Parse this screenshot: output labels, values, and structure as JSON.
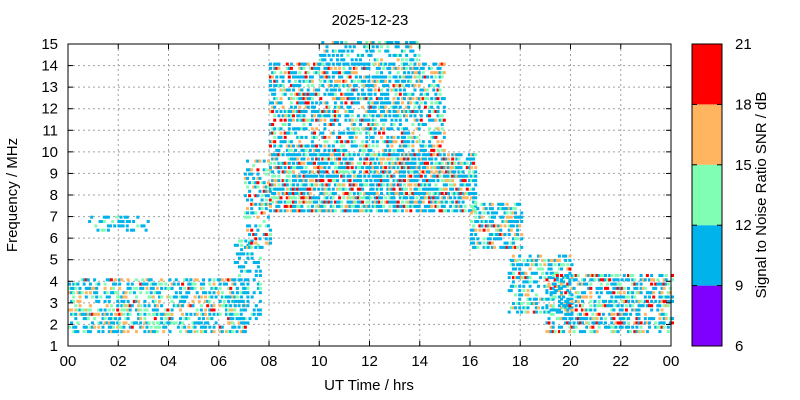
{
  "chart_data": {
    "type": "heatmap",
    "title": "2025-12-23",
    "xlabel": "UT Time / hrs",
    "ylabel": "Frequency / MHz",
    "xlim": [
      0,
      24
    ],
    "ylim": [
      1,
      15
    ],
    "x_ticks": [
      "00",
      "02",
      "04",
      "06",
      "08",
      "10",
      "12",
      "14",
      "16",
      "18",
      "20",
      "22",
      "00"
    ],
    "y_ticks": [
      "1",
      "2",
      "3",
      "4",
      "5",
      "6",
      "7",
      "8",
      "9",
      "10",
      "11",
      "12",
      "13",
      "14",
      "15"
    ],
    "grid": true,
    "colorbar": {
      "label": "Signal to Noise Ratio SNR / dB",
      "ticks": [
        "6",
        "9",
        "12",
        "15",
        "18",
        "21"
      ],
      "bins": [
        {
          "from": 6,
          "to": 9,
          "color": "#8000ff"
        },
        {
          "from": 9,
          "to": 12,
          "color": "#00b4eb"
        },
        {
          "from": 12,
          "to": 15,
          "color": "#80ffb4"
        },
        {
          "from": 15,
          "to": 18,
          "color": "#ffb460"
        },
        {
          "from": 18,
          "to": 21,
          "color": "#ff0000"
        }
      ]
    },
    "observations": [
      {
        "t0": 0.0,
        "t1": 7.0,
        "f0": 1.6,
        "f1": 4.1,
        "density": 0.5,
        "snr": [
          10,
          19
        ]
      },
      {
        "t0": 0.8,
        "t1": 3.2,
        "f0": 6.3,
        "f1": 7.0,
        "density": 0.35,
        "snr": [
          9,
          13
        ]
      },
      {
        "t0": 6.6,
        "t1": 7.6,
        "f0": 2.0,
        "f1": 6.0,
        "density": 0.35,
        "snr": [
          9,
          14
        ]
      },
      {
        "t0": 7.0,
        "t1": 8.0,
        "f0": 5.5,
        "f1": 9.5,
        "density": 0.45,
        "snr": [
          9,
          19
        ]
      },
      {
        "t0": 8.0,
        "t1": 16.2,
        "f0": 7.2,
        "f1": 9.8,
        "density": 0.75,
        "snr": [
          9,
          21
        ]
      },
      {
        "t0": 8.0,
        "t1": 15.0,
        "f0": 10.0,
        "f1": 14.0,
        "density": 0.55,
        "snr": [
          9,
          20
        ]
      },
      {
        "t0": 10.0,
        "t1": 14.0,
        "f0": 14.0,
        "f1": 15.0,
        "density": 0.45,
        "snr": [
          9,
          16
        ]
      },
      {
        "t0": 16.0,
        "t1": 18.0,
        "f0": 5.5,
        "f1": 7.6,
        "density": 0.55,
        "snr": [
          9,
          19
        ]
      },
      {
        "t0": 17.5,
        "t1": 20.0,
        "f0": 2.5,
        "f1": 5.2,
        "density": 0.5,
        "snr": [
          9,
          19
        ]
      },
      {
        "t0": 19.0,
        "t1": 24.0,
        "f0": 1.6,
        "f1": 4.3,
        "density": 0.55,
        "snr": [
          9,
          21
        ]
      }
    ]
  }
}
